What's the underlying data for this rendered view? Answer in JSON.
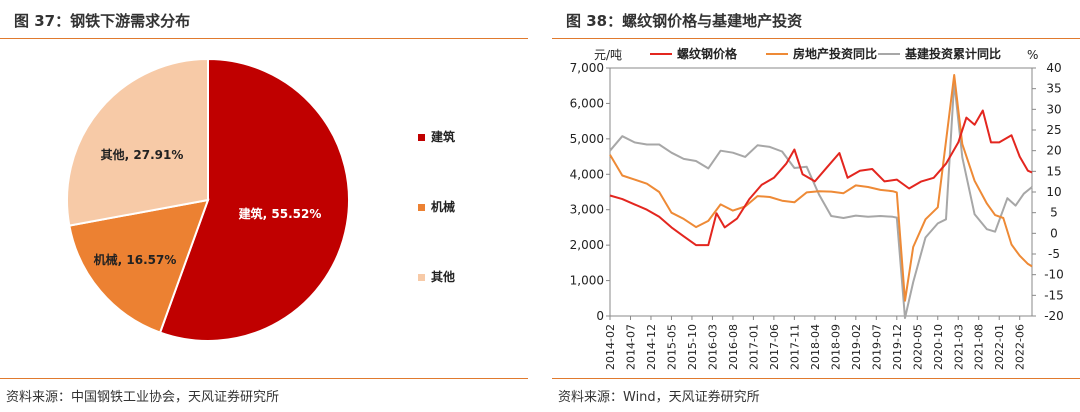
{
  "left": {
    "title": "图 37：钢铁下游需求分布",
    "source": "资料来源：中国钢铁工业协会，天风证券研究所"
  },
  "right": {
    "title": "图 38：螺纹钢价格与基建地产投资",
    "source": "资料来源：Wind，天风证券研究所"
  },
  "colors": {
    "rebar": "#e3261f",
    "realestate": "#ee8a36",
    "infra": "#a7a7a7",
    "pie_jianzhu": "#c00000",
    "pie_jixie": "#ec8132",
    "pie_qita": "#f7caa7",
    "rule": "#e07a2e"
  },
  "chart_data": [
    {
      "type": "pie",
      "slices": [
        {
          "name": "建筑",
          "value": 55.52,
          "label": "建筑, 55.52%",
          "color": "#c00000"
        },
        {
          "name": "机械",
          "value": 16.57,
          "label": "机械, 16.57%",
          "color": "#ec8132"
        },
        {
          "name": "其他",
          "value": 27.91,
          "label": "其他, 27.91%",
          "color": "#f7caa7"
        }
      ],
      "legend": [
        "建筑",
        "机械",
        "其他"
      ],
      "legend_position": "right"
    },
    {
      "type": "line",
      "left_axis": {
        "unit": "元/吨",
        "range": [
          0,
          7000
        ],
        "ticks": [
          "0",
          "1,000",
          "2,000",
          "3,000",
          "4,000",
          "5,000",
          "6,000",
          "7,000"
        ]
      },
      "right_axis": {
        "unit": "%",
        "range": [
          -20,
          40
        ],
        "ticks": [
          "-20",
          "-15",
          "-10",
          "-5",
          "0",
          "5",
          "10",
          "15",
          "20",
          "25",
          "30",
          "35",
          "40"
        ]
      },
      "x_ticks": [
        "2014-02",
        "2014-07",
        "2014-12",
        "2015-05",
        "2015-10",
        "2016-03",
        "2016-08",
        "2017-01",
        "2017-06",
        "2017-11",
        "2018-04",
        "2018-09",
        "2019-02",
        "2019-07",
        "2019-12",
        "2020-05",
        "2020-10",
        "2021-03",
        "2021-08",
        "2022-01",
        "2022-06"
      ],
      "legend_position": "top",
      "series": [
        {
          "name": "螺纹钢价格",
          "axis": "left",
          "color": "#e3261f",
          "points": [
            [
              "2014-02",
              3400
            ],
            [
              "2014-05",
              3300
            ],
            [
              "2014-08",
              3150
            ],
            [
              "2014-11",
              3000
            ],
            [
              "2015-02",
              2800
            ],
            [
              "2015-05",
              2500
            ],
            [
              "2015-08",
              2250
            ],
            [
              "2015-11",
              2000
            ],
            [
              "2016-02",
              2000
            ],
            [
              "2016-04",
              2900
            ],
            [
              "2016-06",
              2500
            ],
            [
              "2016-09",
              2750
            ],
            [
              "2016-12",
              3300
            ],
            [
              "2017-03",
              3700
            ],
            [
              "2017-06",
              3900
            ],
            [
              "2017-09",
              4300
            ],
            [
              "2017-11",
              4700
            ],
            [
              "2018-01",
              4000
            ],
            [
              "2018-04",
              3800
            ],
            [
              "2018-07",
              4200
            ],
            [
              "2018-10",
              4600
            ],
            [
              "2018-12",
              3900
            ],
            [
              "2019-03",
              4100
            ],
            [
              "2019-06",
              4150
            ],
            [
              "2019-09",
              3800
            ],
            [
              "2019-12",
              3850
            ],
            [
              "2020-03",
              3600
            ],
            [
              "2020-06",
              3800
            ],
            [
              "2020-09",
              3900
            ],
            [
              "2020-12",
              4300
            ],
            [
              "2021-03",
              4900
            ],
            [
              "2021-05",
              5600
            ],
            [
              "2021-07",
              5400
            ],
            [
              "2021-09",
              5800
            ],
            [
              "2021-11",
              4900
            ],
            [
              "2022-01",
              4900
            ],
            [
              "2022-04",
              5100
            ],
            [
              "2022-06",
              4500
            ],
            [
              "2022-08",
              4100
            ],
            [
              "2022-09",
              4050
            ]
          ]
        },
        {
          "name": "房地产投资同比",
          "axis": "right",
          "color": "#ee8a36",
          "points": [
            [
              "2014-02",
              19
            ],
            [
              "2014-05",
              14
            ],
            [
              "2014-08",
              13
            ],
            [
              "2014-11",
              12
            ],
            [
              "2015-02",
              10
            ],
            [
              "2015-05",
              5
            ],
            [
              "2015-08",
              3.5
            ],
            [
              "2015-11",
              1.5
            ],
            [
              "2016-02",
              3
            ],
            [
              "2016-05",
              7
            ],
            [
              "2016-08",
              5.5
            ],
            [
              "2016-11",
              6.5
            ],
            [
              "2017-02",
              9
            ],
            [
              "2017-05",
              8.8
            ],
            [
              "2017-08",
              7.9
            ],
            [
              "2017-11",
              7.5
            ],
            [
              "2018-02",
              9.9
            ],
            [
              "2018-05",
              10.2
            ],
            [
              "2018-08",
              10.1
            ],
            [
              "2018-11",
              9.7
            ],
            [
              "2019-02",
              11.6
            ],
            [
              "2019-05",
              11.2
            ],
            [
              "2019-08",
              10.5
            ],
            [
              "2019-11",
              10.2
            ],
            [
              "2019-12",
              9.9
            ],
            [
              "2020-02",
              -16.3
            ],
            [
              "2020-04",
              -3.3
            ],
            [
              "2020-07",
              3.4
            ],
            [
              "2020-10",
              6.3
            ],
            [
              "2021-02",
              38.3
            ],
            [
              "2021-04",
              21.6
            ],
            [
              "2021-07",
              12.7
            ],
            [
              "2021-10",
              7.2
            ],
            [
              "2021-12",
              4.4
            ],
            [
              "2022-02",
              3.7
            ],
            [
              "2022-04",
              -2.7
            ],
            [
              "2022-06",
              -5.4
            ],
            [
              "2022-08",
              -7.4
            ],
            [
              "2022-09",
              -8.0
            ]
          ]
        },
        {
          "name": "基建投资累计同比",
          "axis": "right",
          "color": "#a7a7a7",
          "points": [
            [
              "2014-02",
              20
            ],
            [
              "2014-05",
              23.5
            ],
            [
              "2014-08",
              22
            ],
            [
              "2014-11",
              21.5
            ],
            [
              "2015-02",
              21.5
            ],
            [
              "2015-05",
              19.5
            ],
            [
              "2015-08",
              18
            ],
            [
              "2015-11",
              17.5
            ],
            [
              "2016-02",
              15.7
            ],
            [
              "2016-05",
              20
            ],
            [
              "2016-08",
              19.5
            ],
            [
              "2016-11",
              18.5
            ],
            [
              "2017-02",
              21.3
            ],
            [
              "2017-05",
              20.9
            ],
            [
              "2017-08",
              19.8
            ],
            [
              "2017-11",
              15.8
            ],
            [
              "2018-02",
              16.1
            ],
            [
              "2018-05",
              9.4
            ],
            [
              "2018-08",
              4.2
            ],
            [
              "2018-11",
              3.7
            ],
            [
              "2019-02",
              4.3
            ],
            [
              "2019-05",
              4.0
            ],
            [
              "2019-08",
              4.2
            ],
            [
              "2019-11",
              4.0
            ],
            [
              "2019-12",
              3.8
            ],
            [
              "2020-02",
              -30.3
            ],
            [
              "2020-04",
              -11.8
            ],
            [
              "2020-07",
              -1.0
            ],
            [
              "2020-10",
              2.4
            ],
            [
              "2020-12",
              3.4
            ],
            [
              "2021-02",
              36.6
            ],
            [
              "2021-04",
              18.4
            ],
            [
              "2021-07",
              4.6
            ],
            [
              "2021-10",
              1.0
            ],
            [
              "2021-12",
              0.4
            ],
            [
              "2022-03",
              8.5
            ],
            [
              "2022-05",
              6.7
            ],
            [
              "2022-07",
              9.6
            ],
            [
              "2022-09",
              11.2
            ]
          ]
        }
      ]
    }
  ]
}
